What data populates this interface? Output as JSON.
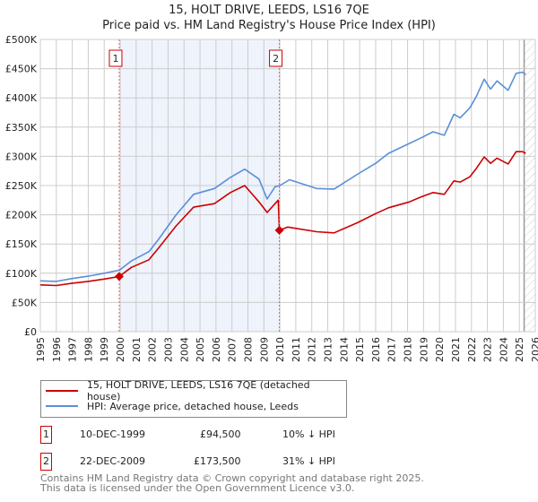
{
  "title": "15, HOLT DRIVE, LEEDS, LS16 7QE",
  "subtitle": "Price paid vs. HM Land Registry's House Price Index (HPI)",
  "colors": {
    "property": "#cc0000",
    "hpi": "#5b8fd6",
    "shade": "#eef3fc",
    "grid": "#cccccc"
  },
  "chart_data": {
    "type": "line",
    "title": "15, HOLT DRIVE, LEEDS, LS16 7QE",
    "subtitle": "Price paid vs. HM Land Registry's House Price Index (HPI)",
    "xlim": [
      1995,
      2026
    ],
    "ylim": [
      0,
      500000
    ],
    "grid": true,
    "x_ticks": [
      "1995",
      "1996",
      "1997",
      "1998",
      "1999",
      "2000",
      "2001",
      "2002",
      "2003",
      "2004",
      "2005",
      "2006",
      "2007",
      "2008",
      "2009",
      "2010",
      "2011",
      "2012",
      "2013",
      "2014",
      "2015",
      "2016",
      "2017",
      "2018",
      "2019",
      "2020",
      "2021",
      "2022",
      "2023",
      "2024",
      "2025",
      "2026"
    ],
    "y_ticks": [
      {
        "v": 0,
        "label": "£0"
      },
      {
        "v": 50000,
        "label": "£50K"
      },
      {
        "v": 100000,
        "label": "£100K"
      },
      {
        "v": 150000,
        "label": "£150K"
      },
      {
        "v": 200000,
        "label": "£200K"
      },
      {
        "v": 250000,
        "label": "£250K"
      },
      {
        "v": 300000,
        "label": "£300K"
      },
      {
        "v": 350000,
        "label": "£350K"
      },
      {
        "v": 400000,
        "label": "£400K"
      },
      {
        "v": 450000,
        "label": "£450K"
      },
      {
        "v": 500000,
        "label": "£500K"
      }
    ],
    "shaded_range": [
      1999.94,
      2009.97
    ],
    "hatched_from": 2025.3,
    "series": [
      {
        "name": "15, HOLT DRIVE, LEEDS, LS16 7QE (detached house)",
        "color": "#cc0000",
        "x": [
          1995,
          1996,
          1997,
          1998,
          1999,
          1999.94,
          2000.7,
          2001.8,
          2002.4,
          2003.5,
          2004.6,
          2005.9,
          2006.9,
          2007.8,
          2008.7,
          2009.2,
          2009.9,
          2009.97,
          2010.5,
          2012.3,
          2013.4,
          2014.9,
          2016,
          2016.8,
          2018.1,
          2018.8,
          2019.6,
          2020.3,
          2020.9,
          2021.3,
          2021.9,
          2022.3,
          2022.8,
          2023.2,
          2023.6,
          2024.3,
          2024.8,
          2025.2,
          2025.4
        ],
        "y": [
          80000,
          79000,
          83000,
          86000,
          90000,
          94500,
          110000,
          123000,
          143000,
          181000,
          213000,
          219000,
          238000,
          250000,
          222000,
          204000,
          225000,
          173500,
          179000,
          171000,
          169000,
          187000,
          202000,
          212000,
          222000,
          230000,
          238000,
          235000,
          258000,
          256000,
          265000,
          279000,
          299000,
          288000,
          297000,
          287000,
          308000,
          308000,
          305000
        ]
      },
      {
        "name": "HPI: Average price, detached house, Leeds",
        "color": "#5b8fd6",
        "x": [
          1995,
          1996,
          1997,
          1998,
          1999,
          1999.94,
          2000.7,
          2001.8,
          2002.4,
          2003.5,
          2004.6,
          2005.9,
          2006.9,
          2007.8,
          2008.7,
          2009.2,
          2009.7,
          2010,
          2010.6,
          2012.3,
          2013.4,
          2014.9,
          2016,
          2016.8,
          2018.1,
          2018.8,
          2019.6,
          2020.3,
          2020.9,
          2021.3,
          2021.9,
          2022.3,
          2022.8,
          2023.2,
          2023.6,
          2024.3,
          2024.8,
          2025.2,
          2025.4
        ],
        "y": [
          87000,
          86000,
          91000,
          95000,
          100000,
          105000,
          121000,
          137000,
          158000,
          200000,
          235000,
          245000,
          264000,
          278000,
          261000,
          227000,
          248000,
          250000,
          260000,
          245000,
          244000,
          270000,
          288000,
          305000,
          322000,
          331000,
          342000,
          336000,
          372000,
          366000,
          383000,
          402000,
          432000,
          415000,
          429000,
          413000,
          442000,
          444000,
          440000
        ]
      }
    ],
    "markers": [
      {
        "label": "1",
        "x": 1999.94,
        "y": 94500
      },
      {
        "label": "2",
        "x": 2009.97,
        "y": 173500
      }
    ]
  },
  "legend": {
    "property": "15, HOLT DRIVE, LEEDS, LS16 7QE (detached house)",
    "hpi": "HPI: Average price, detached house, Leeds"
  },
  "transactions": [
    {
      "num": "1",
      "date": "10-DEC-1999",
      "price": "£94,500",
      "hpi": "10% ↓ HPI"
    },
    {
      "num": "2",
      "date": "22-DEC-2009",
      "price": "£173,500",
      "hpi": "31% ↓ HPI"
    }
  ],
  "footer": {
    "line1": "Contains HM Land Registry data © Crown copyright and database right 2025.",
    "line2": "This data is licensed under the Open Government Licence v3.0."
  }
}
